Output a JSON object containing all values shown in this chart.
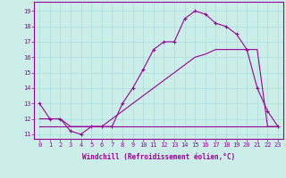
{
  "background_color": "#cceee8",
  "grid_color": "#aadddd",
  "line_color": "#990099",
  "xlabel": "Windchill (Refroidissement éolien,°C)",
  "ylabel_ticks": [
    11,
    12,
    13,
    14,
    15,
    16,
    17,
    18,
    19
  ],
  "xlim": [
    -0.5,
    23.5
  ],
  "ylim": [
    10.7,
    19.6
  ],
  "x_ticks": [
    0,
    1,
    2,
    3,
    4,
    5,
    6,
    7,
    8,
    9,
    10,
    11,
    12,
    13,
    14,
    15,
    16,
    17,
    18,
    19,
    20,
    21,
    22,
    23
  ],
  "series1_x": [
    0,
    1,
    2,
    3,
    4,
    5,
    6,
    7,
    8,
    9,
    10,
    11,
    12,
    13,
    14,
    15,
    16,
    17,
    18,
    19,
    20,
    21,
    22,
    23
  ],
  "series1_y": [
    11.5,
    11.5,
    11.5,
    11.5,
    11.5,
    11.5,
    11.5,
    11.5,
    11.5,
    11.5,
    11.5,
    11.5,
    11.5,
    11.5,
    11.5,
    11.5,
    11.5,
    11.5,
    11.5,
    11.5,
    11.5,
    11.5,
    11.5,
    11.5
  ],
  "series2_x": [
    0,
    1,
    2,
    3,
    4,
    5,
    6,
    7,
    8,
    9,
    10,
    11,
    12,
    13,
    14,
    15,
    16,
    17,
    18,
    19,
    20,
    21,
    22,
    23
  ],
  "series2_y": [
    12.0,
    12.0,
    12.0,
    11.5,
    11.5,
    11.5,
    11.5,
    12.0,
    12.5,
    13.0,
    13.5,
    14.0,
    14.5,
    15.0,
    15.5,
    16.0,
    16.2,
    16.5,
    16.5,
    16.5,
    16.5,
    16.5,
    11.5,
    11.5
  ],
  "series3_x": [
    0,
    1,
    2,
    3,
    4,
    5,
    6,
    7,
    8,
    9,
    10,
    11,
    12,
    13,
    14,
    15,
    16,
    17,
    18,
    19,
    20,
    21,
    22,
    23
  ],
  "series3_y": [
    13.0,
    12.0,
    12.0,
    11.2,
    11.0,
    11.5,
    11.5,
    11.5,
    13.0,
    14.0,
    15.2,
    16.5,
    17.0,
    17.0,
    18.5,
    19.0,
    18.8,
    18.2,
    18.0,
    17.5,
    16.5,
    14.0,
    12.5,
    11.5
  ]
}
